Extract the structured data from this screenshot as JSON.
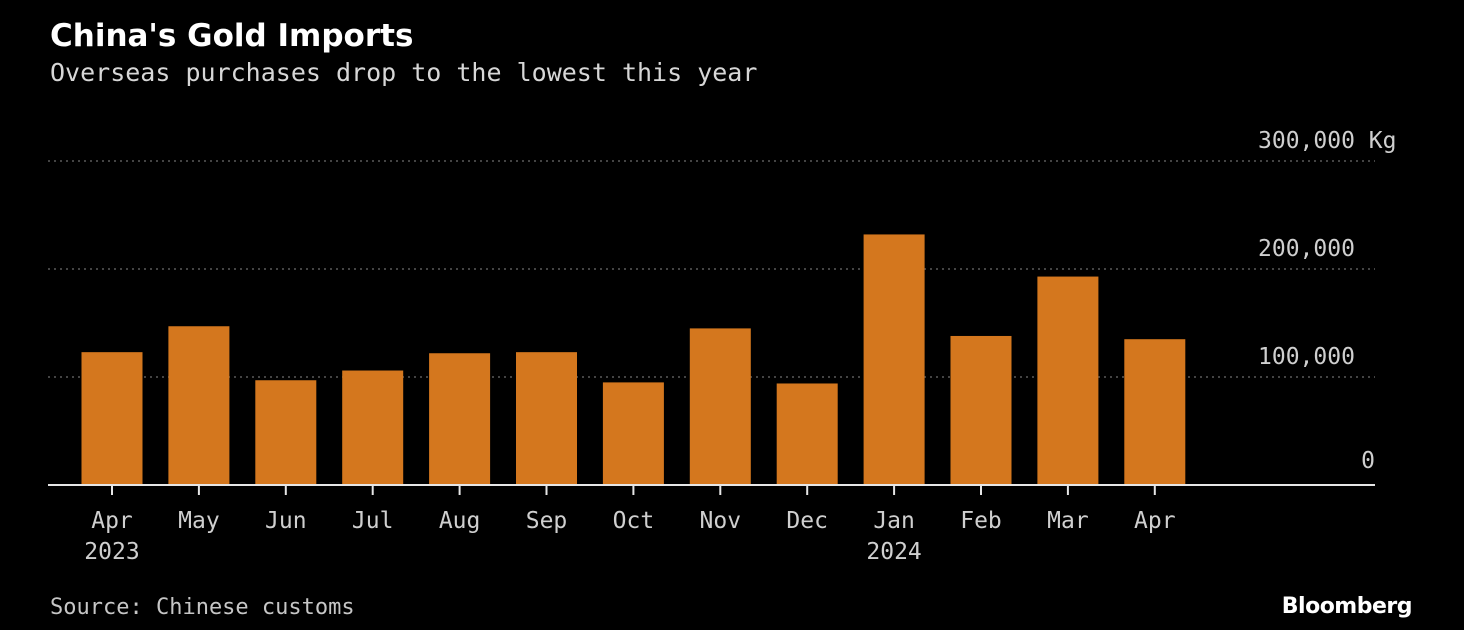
{
  "chart_data": {
    "type": "bar",
    "title": "China's Gold Imports",
    "subtitle": "Overseas purchases drop to the lowest this year",
    "ylabel_unit": "Kg",
    "ylim": [
      0,
      300000
    ],
    "yticks": [
      0,
      100000,
      200000,
      300000
    ],
    "ytick_labels": [
      "0",
      "100,000",
      "200,000",
      "300,000 Kg"
    ],
    "categories": [
      "Apr",
      "May",
      "Jun",
      "Jul",
      "Aug",
      "Sep",
      "Oct",
      "Nov",
      "Dec",
      "Jan",
      "Feb",
      "Mar",
      "Apr"
    ],
    "year_labels": [
      "2023",
      "",
      "",
      "",
      "",
      "",
      "",
      "",
      "",
      "2024",
      "",
      "",
      ""
    ],
    "values": [
      123000,
      147000,
      97000,
      106000,
      122000,
      123000,
      95000,
      145000,
      94000,
      232000,
      138000,
      193000,
      135000
    ],
    "bar_color": "#d4771e",
    "grid": true,
    "axis_position": "right"
  },
  "source": "Source: Chinese customs",
  "brand": "Bloomberg"
}
